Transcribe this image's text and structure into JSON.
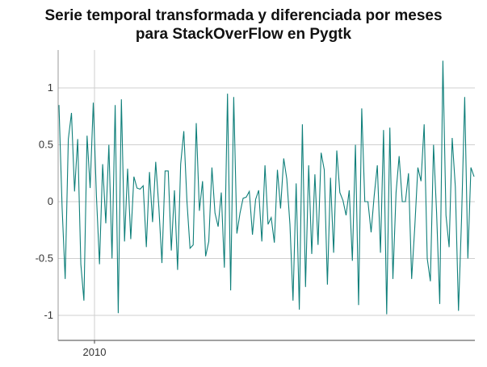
{
  "chart_data": {
    "type": "line",
    "title_lines": [
      "Serie temporal transformada y diferenciada por meses",
      "para StackOverFlow en Pygtk"
    ],
    "xlabel": "",
    "ylabel": "",
    "x_tick_labels": [
      "2010"
    ],
    "y_ticks": [
      1,
      0.5,
      0,
      -0.5,
      -1
    ],
    "y_tick_labels": [
      "1",
      "0.5",
      "0",
      "-0.5",
      "-1"
    ],
    "ylim": [
      -1.24,
      1.24
    ],
    "grid": true,
    "legend": "none",
    "series": [
      {
        "color": "#0f7f7a",
        "values": [
          0.85,
          -0.05,
          -0.68,
          0.55,
          0.78,
          0.09,
          0.55,
          -0.55,
          -0.87,
          0.58,
          0.12,
          0.87,
          0.05,
          -0.55,
          0.33,
          -0.19,
          0.5,
          -0.5,
          0.85,
          -0.98,
          0.9,
          -0.35,
          0.29,
          -0.33,
          0.22,
          0.12,
          0.11,
          0.14,
          -0.4,
          0.26,
          -0.18,
          0.35,
          -0.05,
          -0.54,
          0.27,
          0.27,
          -0.43,
          0.1,
          -0.6,
          0.33,
          0.62,
          0.0,
          -0.41,
          -0.38,
          0.69,
          -0.08,
          0.18,
          -0.48,
          -0.35,
          0.3,
          -0.1,
          -0.22,
          0.08,
          -0.58,
          0.95,
          -0.78,
          0.92,
          -0.28,
          -0.1,
          0.03,
          0.04,
          0.09,
          -0.29,
          0.02,
          0.1,
          -0.35,
          0.32,
          -0.2,
          -0.14,
          -0.36,
          0.28,
          -0.06,
          0.38,
          0.2,
          -0.2,
          -0.87,
          0.16,
          -0.95,
          0.68,
          -0.75,
          0.32,
          -0.46,
          0.24,
          -0.38,
          0.43,
          0.28,
          -0.73,
          0.21,
          -0.45,
          0.45,
          0.08,
          0.01,
          -0.12,
          0.1,
          -0.52,
          0.5,
          -0.91,
          0.82,
          0.0,
          0.0,
          -0.27,
          0.05,
          0.32,
          -0.45,
          0.63,
          -0.99,
          0.65,
          -0.68,
          0.08,
          0.4,
          0.0,
          0.0,
          0.25,
          -0.68,
          -0.22,
          0.3,
          0.18,
          0.68,
          -0.5,
          -0.7,
          0.5,
          -0.1,
          -0.9,
          1.24,
          -0.12,
          -0.4,
          0.56,
          0.13,
          -0.96,
          -0.15,
          0.92,
          -0.5,
          0.3,
          0.22
        ]
      }
    ]
  }
}
